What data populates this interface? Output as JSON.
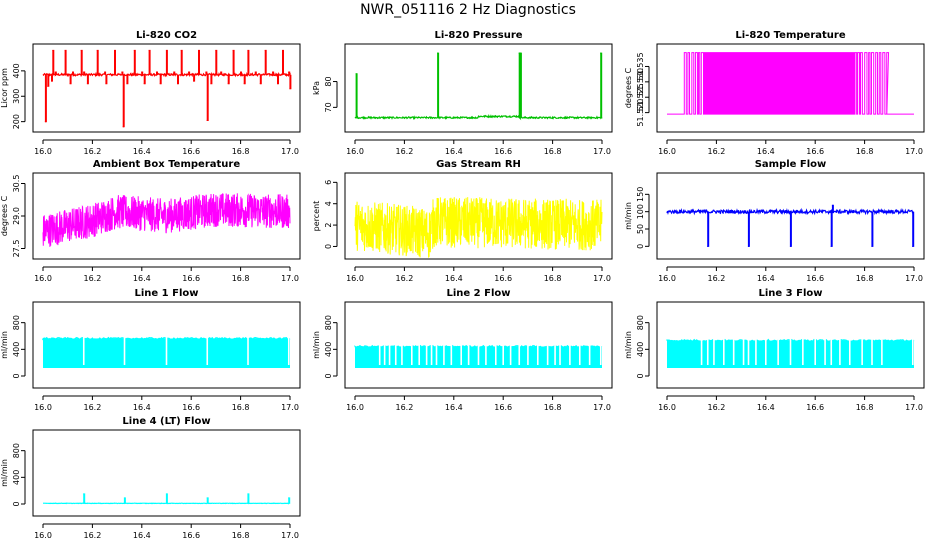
{
  "title": "NWR_051116  2 Hz Diagnostics",
  "chart_data": [
    {
      "id": "co2",
      "type": "line",
      "title": "Li-820 CO2",
      "ylabel": "Licor ppm",
      "color": "#ff0000",
      "xlim": [
        16.0,
        17.0
      ],
      "ylim": [
        175,
        490
      ],
      "xticks": [
        "16.0",
        "16.2",
        "16.4",
        "16.6",
        "16.8",
        "17.0"
      ],
      "yticks": [
        200,
        300,
        400
      ],
      "baseline": 385,
      "noise": 4,
      "segments": [],
      "spikes": [
        [
          16.04,
          480
        ],
        [
          16.05,
          395
        ],
        [
          16.09,
          480
        ],
        [
          16.12,
          395
        ],
        [
          16.155,
          480
        ],
        [
          16.165,
          395
        ],
        [
          16.22,
          480
        ],
        [
          16.25,
          395
        ],
        [
          16.29,
          480
        ],
        [
          16.32,
          395
        ],
        [
          16.325,
          180
        ],
        [
          16.37,
          480
        ],
        [
          16.4,
          395
        ],
        [
          16.43,
          480
        ],
        [
          16.46,
          395
        ],
        [
          16.5,
          480
        ],
        [
          16.53,
          395
        ],
        [
          16.56,
          480
        ],
        [
          16.59,
          395
        ],
        [
          16.63,
          480
        ],
        [
          16.66,
          395
        ],
        [
          16.665,
          205
        ],
        [
          16.7,
          480
        ],
        [
          16.72,
          395
        ],
        [
          16.77,
          480
        ],
        [
          16.8,
          395
        ],
        [
          16.83,
          480
        ],
        [
          16.86,
          395
        ],
        [
          16.9,
          480
        ],
        [
          16.93,
          395
        ],
        [
          16.97,
          480
        ],
        [
          16.995,
          395
        ],
        [
          16.01,
          200
        ],
        [
          16.02,
          340
        ],
        [
          16.035,
          360
        ],
        [
          16.11,
          350
        ],
        [
          16.18,
          350
        ],
        [
          16.255,
          350
        ],
        [
          16.34,
          350
        ],
        [
          16.41,
          350
        ],
        [
          16.475,
          350
        ],
        [
          16.545,
          350
        ],
        [
          16.61,
          360
        ],
        [
          16.68,
          350
        ],
        [
          16.75,
          350
        ],
        [
          16.815,
          350
        ],
        [
          16.88,
          350
        ],
        [
          16.95,
          350
        ],
        [
          17.0,
          330
        ]
      ]
    },
    {
      "id": "pressure",
      "type": "line",
      "title": "Li-820 Pressure",
      "ylabel": "kPa",
      "color": "#00c000",
      "xlim": [
        16.0,
        17.0
      ],
      "ylim": [
        62,
        93
      ],
      "xticks": [
        "16.0",
        "16.2",
        "16.4",
        "16.6",
        "16.8",
        "17.0"
      ],
      "yticks": [
        70,
        80
      ],
      "baseline": 66,
      "noise": 0.3,
      "segments": [
        [
          16.0,
          16.5,
          66
        ],
        [
          16.5,
          16.665,
          66.5
        ],
        [
          16.665,
          17.0,
          66
        ]
      ],
      "spikes": [
        [
          16.005,
          83
        ],
        [
          16.335,
          91
        ],
        [
          16.665,
          91
        ],
        [
          16.667,
          91
        ],
        [
          16.67,
          91
        ],
        [
          16.995,
          91
        ]
      ]
    },
    {
      "id": "li-temp",
      "type": "line",
      "title": "Li-820 Temperature",
      "ylabel": "degrees C",
      "color": "#ff00ff",
      "xlim": [
        16.0,
        17.0
      ],
      "ylim": [
        51.515,
        51.541
      ],
      "xticks": [
        "16.0",
        "16.2",
        "16.4",
        "16.6",
        "16.8",
        "17.0"
      ],
      "yticks": [
        "51.520",
        "51.525",
        "51.530",
        "51.535"
      ],
      "mode": "square",
      "low": 51.5195,
      "high": 51.5395,
      "switchRange": [
        16.07,
        16.89
      ],
      "solidRange": [
        16.14,
        16.76
      ]
    },
    {
      "id": "box-temp",
      "type": "line",
      "title": "Ambient Box Temperature",
      "ylabel": "degrees C",
      "color": "#ff00ff",
      "xlim": [
        16.0,
        17.0
      ],
      "ylim": [
        27.2,
        30.8
      ],
      "xticks": [
        "16.0",
        "16.2",
        "16.4",
        "16.6",
        "16.8",
        "17.0"
      ],
      "yticks": [
        "27.5",
        "29.0",
        "30.5"
      ],
      "mode": "noise",
      "center": [
        [
          16.0,
          28.3
        ],
        [
          16.2,
          28.8
        ],
        [
          16.3,
          29.2
        ],
        [
          16.5,
          29.0
        ],
        [
          16.7,
          29.3
        ],
        [
          17.0,
          29.2
        ]
      ],
      "amp": 0.8
    },
    {
      "id": "rh",
      "type": "line",
      "title": "Gas Stream RH",
      "ylabel": "percent",
      "color": "#ffff00",
      "xlim": [
        16.0,
        17.0
      ],
      "ylim": [
        -0.8,
        6.5
      ],
      "xticks": [
        "16.0",
        "16.2",
        "16.4",
        "16.6",
        "16.8",
        "17.0"
      ],
      "yticks": [
        0,
        2,
        4,
        6
      ],
      "mode": "noise",
      "center": [
        [
          16.0,
          2.0
        ],
        [
          16.2,
          1.5
        ],
        [
          16.3,
          1.2
        ],
        [
          16.32,
          2.3
        ],
        [
          17.0,
          2.0
        ]
      ],
      "amp": 2.4
    },
    {
      "id": "sample-flow",
      "type": "line",
      "title": "Sample Flow",
      "ylabel": "ml/min",
      "color": "#0000ff",
      "xlim": [
        16.0,
        17.0
      ],
      "ylim": [
        -25,
        200
      ],
      "xticks": [
        "16.0",
        "16.2",
        "16.4",
        "16.6",
        "16.8",
        "17.0"
      ],
      "yticks": [
        0,
        50,
        100,
        150
      ],
      "baseline": 100,
      "noise": 5,
      "segments": [],
      "spikes": [
        [
          16.165,
          0
        ],
        [
          16.33,
          0
        ],
        [
          16.5,
          0
        ],
        [
          16.665,
          0
        ],
        [
          16.67,
          118
        ],
        [
          16.83,
          0
        ],
        [
          16.995,
          0
        ]
      ]
    },
    {
      "id": "line1",
      "type": "line",
      "title": "Line 1 Flow",
      "ylabel": "ml/min",
      "color": "#00ffff",
      "xlim": [
        16.0,
        17.0
      ],
      "ylim": [
        -120,
        1050
      ],
      "xticks": [
        "16.0",
        "16.2",
        "16.4",
        "16.6",
        "16.8",
        "17.0"
      ],
      "yticks": [
        0,
        400,
        800
      ],
      "mode": "band",
      "low": 120,
      "high": 560,
      "dropouts": [
        16.165,
        16.33,
        16.5,
        16.665,
        16.83,
        16.995
      ]
    },
    {
      "id": "line2",
      "type": "line",
      "title": "Line 2 Flow",
      "ylabel": "ml/min",
      "color": "#00ffff",
      "xlim": [
        16.0,
        17.0
      ],
      "ylim": [
        -120,
        1050
      ],
      "xticks": [
        "16.0",
        "16.2",
        "16.4",
        "16.6",
        "16.8",
        "17.0"
      ],
      "yticks": [
        0,
        400,
        800
      ],
      "mode": "band",
      "low": 120,
      "high": 440,
      "dropouts": [
        16.1,
        16.12,
        16.14,
        16.165,
        16.19,
        16.23,
        16.26,
        16.29,
        16.31,
        16.33,
        16.36,
        16.39,
        16.43,
        16.46,
        16.5,
        16.53,
        16.57,
        16.6,
        16.63,
        16.665,
        16.7,
        16.74,
        16.78,
        16.81,
        16.83,
        16.87,
        16.91,
        16.95,
        16.995
      ]
    },
    {
      "id": "line3",
      "type": "line",
      "title": "Line 3 Flow",
      "ylabel": "ml/min",
      "color": "#00ffff",
      "xlim": [
        16.0,
        17.0
      ],
      "ylim": [
        -120,
        1050
      ],
      "xticks": [
        "16.0",
        "16.2",
        "16.4",
        "16.6",
        "16.8",
        "17.0"
      ],
      "yticks": [
        0,
        400,
        800
      ],
      "mode": "band",
      "low": 120,
      "high": 530,
      "dropouts": [
        16.14,
        16.165,
        16.19,
        16.23,
        16.27,
        16.31,
        16.33,
        16.36,
        16.4,
        16.45,
        16.5,
        16.55,
        16.6,
        16.64,
        16.665,
        16.7,
        16.74,
        16.79,
        16.83,
        16.87,
        16.995
      ]
    },
    {
      "id": "line4",
      "type": "line",
      "title": "Line 4 (LT) Flow",
      "ylabel": "ml/min",
      "color": "#00ffff",
      "xlim": [
        16.0,
        17.0
      ],
      "ylim": [
        -120,
        1050
      ],
      "xticks": [
        "16.0",
        "16.2",
        "16.4",
        "16.6",
        "16.8",
        "17.0"
      ],
      "yticks": [
        0,
        400,
        800
      ],
      "baseline": 10,
      "noise": 3,
      "segments": [],
      "spikes": [
        [
          16.165,
          150
        ],
        [
          16.33,
          90
        ],
        [
          16.5,
          150
        ],
        [
          16.665,
          90
        ],
        [
          16.83,
          150
        ],
        [
          16.995,
          90
        ]
      ]
    }
  ]
}
